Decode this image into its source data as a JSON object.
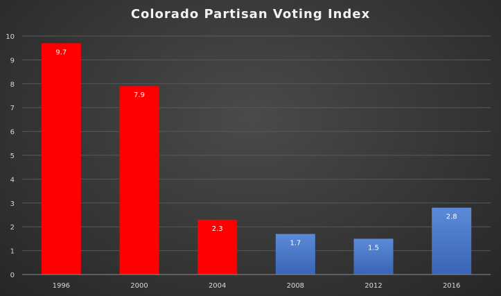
{
  "chart_data": {
    "type": "bar",
    "title": "Colorado Partisan Voting Index",
    "categories": [
      "1996",
      "2000",
      "2004",
      "2008",
      "2012",
      "2016"
    ],
    "values": [
      9.7,
      7.9,
      2.3,
      1.7,
      1.5,
      2.8
    ],
    "data_labels": [
      "9.7",
      "7.9",
      "2.3",
      "1.7",
      "1.5",
      "2.8"
    ],
    "bar_colors": [
      "#ff0000",
      "#ff0000",
      "#ff0000",
      "#4472c4",
      "#4472c4",
      "#4472c4"
    ],
    "ylim": [
      0,
      10
    ],
    "yticks": [
      "0",
      "1",
      "2",
      "3",
      "4",
      "5",
      "6",
      "7",
      "8",
      "9",
      "10"
    ],
    "xlabel": "",
    "ylabel": "",
    "grid": true,
    "legend": "none"
  }
}
